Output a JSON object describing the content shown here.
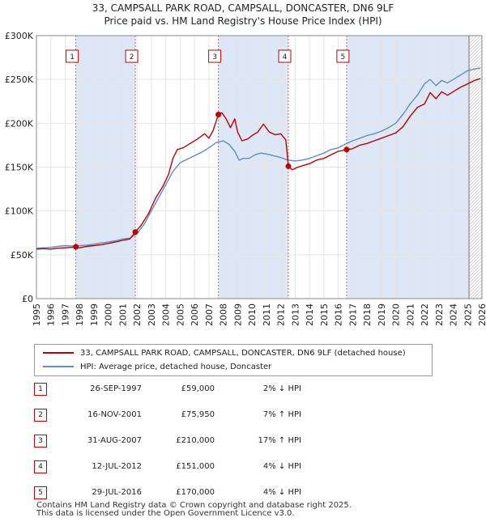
{
  "title_line1": "33, CAMPSALL PARK ROAD, CAMPSALL, DONCASTER, DN6 9LF",
  "title_line2": "Price paid vs. HM Land Registry's House Price Index (HPI)",
  "colors": {
    "property": "#c00000",
    "hpi": "#5b8fc9",
    "shade": "#dde7f5",
    "marker_line": "#e06060"
  },
  "chart_data": {
    "type": "line",
    "ylim": [
      0,
      300000
    ],
    "xlim": [
      1995,
      2026
    ],
    "y_ticks": [
      0,
      50000,
      100000,
      150000,
      200000,
      250000,
      300000
    ],
    "y_tick_labels": [
      "£0",
      "£50K",
      "£100K",
      "£150K",
      "£200K",
      "£250K",
      "£300K"
    ],
    "x_ticks": [
      1995,
      1996,
      1997,
      1998,
      1999,
      2000,
      2001,
      2002,
      2003,
      2004,
      2005,
      2006,
      2007,
      2008,
      2009,
      2010,
      2011,
      2012,
      2013,
      2014,
      2015,
      2016,
      2017,
      2018,
      2019,
      2020,
      2021,
      2022,
      2023,
      2024,
      2025,
      2026
    ],
    "future_from": 2025.1,
    "shaded_spans": [
      [
        1997.74,
        2001.88
      ],
      [
        2007.66,
        2012.53
      ],
      [
        2016.58,
        2025.1
      ]
    ],
    "series": [
      {
        "name": "33, CAMPSALL PARK ROAD, CAMPSALL, DONCASTER, DN6 9LF (detached house)",
        "color": "#c00000",
        "points": [
          [
            1995.0,
            56500
          ],
          [
            1995.5,
            57000
          ],
          [
            1996.0,
            56500
          ],
          [
            1996.5,
            57500
          ],
          [
            1997.0,
            58000
          ],
          [
            1997.5,
            58500
          ],
          [
            1997.74,
            59000
          ],
          [
            1998.0,
            58000
          ],
          [
            1998.5,
            59500
          ],
          [
            1999.0,
            60500
          ],
          [
            1999.5,
            61500
          ],
          [
            2000.0,
            63000
          ],
          [
            2000.5,
            64500
          ],
          [
            2001.0,
            66500
          ],
          [
            2001.5,
            68000
          ],
          [
            2001.88,
            75950
          ],
          [
            2002.3,
            84000
          ],
          [
            2002.8,
            97000
          ],
          [
            2003.3,
            115000
          ],
          [
            2003.8,
            128000
          ],
          [
            2004.2,
            142000
          ],
          [
            2004.5,
            160000
          ],
          [
            2004.8,
            170000
          ],
          [
            2005.2,
            172000
          ],
          [
            2005.7,
            177000
          ],
          [
            2006.2,
            182000
          ],
          [
            2006.7,
            188000
          ],
          [
            2007.0,
            183000
          ],
          [
            2007.3,
            192000
          ],
          [
            2007.66,
            210000
          ],
          [
            2007.9,
            212000
          ],
          [
            2008.2,
            205000
          ],
          [
            2008.5,
            195000
          ],
          [
            2008.8,
            205000
          ],
          [
            2009.0,
            190000
          ],
          [
            2009.3,
            180000
          ],
          [
            2009.7,
            182000
          ],
          [
            2010.0,
            186000
          ],
          [
            2010.4,
            190000
          ],
          [
            2010.8,
            199000
          ],
          [
            2011.2,
            190000
          ],
          [
            2011.6,
            187000
          ],
          [
            2012.0,
            188000
          ],
          [
            2012.35,
            181000
          ],
          [
            2012.45,
            165000
          ],
          [
            2012.53,
            151000
          ],
          [
            2012.8,
            147000
          ],
          [
            2013.2,
            150000
          ],
          [
            2013.6,
            152000
          ],
          [
            2014.0,
            154000
          ],
          [
            2014.5,
            158000
          ],
          [
            2015.0,
            160000
          ],
          [
            2015.5,
            164000
          ],
          [
            2016.0,
            168000
          ],
          [
            2016.58,
            170000
          ],
          [
            2017.0,
            171000
          ],
          [
            2017.5,
            175000
          ],
          [
            2018.0,
            177000
          ],
          [
            2018.5,
            180000
          ],
          [
            2019.0,
            183000
          ],
          [
            2019.5,
            186000
          ],
          [
            2020.0,
            189000
          ],
          [
            2020.5,
            196000
          ],
          [
            2021.0,
            208000
          ],
          [
            2021.5,
            218000
          ],
          [
            2022.0,
            222000
          ],
          [
            2022.4,
            235000
          ],
          [
            2022.8,
            228000
          ],
          [
            2023.2,
            236000
          ],
          [
            2023.6,
            232000
          ],
          [
            2024.0,
            236000
          ],
          [
            2024.5,
            241000
          ],
          [
            2025.0,
            245000
          ],
          [
            2025.5,
            249000
          ],
          [
            2025.9,
            251000
          ]
        ]
      },
      {
        "name": "HPI: Average price, detached house, Doncaster",
        "color": "#5b8fc9",
        "points": [
          [
            1995.0,
            57500
          ],
          [
            1995.5,
            58000
          ],
          [
            1996.0,
            58500
          ],
          [
            1996.5,
            59500
          ],
          [
            1997.0,
            60500
          ],
          [
            1997.5,
            60000
          ],
          [
            1998.0,
            60500
          ],
          [
            1998.5,
            61000
          ],
          [
            1999.0,
            62000
          ],
          [
            1999.5,
            63500
          ],
          [
            2000.0,
            64500
          ],
          [
            2000.5,
            66000
          ],
          [
            2001.0,
            68000
          ],
          [
            2001.5,
            69000
          ],
          [
            2002.0,
            74000
          ],
          [
            2002.5,
            85000
          ],
          [
            2003.0,
            100000
          ],
          [
            2003.5,
            115000
          ],
          [
            2004.0,
            130000
          ],
          [
            2004.5,
            145000
          ],
          [
            2005.0,
            155000
          ],
          [
            2005.5,
            159000
          ],
          [
            2006.0,
            163000
          ],
          [
            2006.5,
            167000
          ],
          [
            2007.0,
            172000
          ],
          [
            2007.5,
            178000
          ],
          [
            2008.0,
            180000
          ],
          [
            2008.4,
            176000
          ],
          [
            2008.8,
            168000
          ],
          [
            2009.1,
            158000
          ],
          [
            2009.4,
            160000
          ],
          [
            2009.8,
            160000
          ],
          [
            2010.2,
            164000
          ],
          [
            2010.6,
            166000
          ],
          [
            2011.0,
            165000
          ],
          [
            2011.5,
            163000
          ],
          [
            2012.0,
            161000
          ],
          [
            2012.5,
            158000
          ],
          [
            2013.0,
            157000
          ],
          [
            2013.5,
            158000
          ],
          [
            2014.0,
            160000
          ],
          [
            2014.5,
            163000
          ],
          [
            2015.0,
            166000
          ],
          [
            2015.5,
            170000
          ],
          [
            2016.0,
            172000
          ],
          [
            2016.58,
            177000
          ],
          [
            2017.0,
            180000
          ],
          [
            2017.5,
            183000
          ],
          [
            2018.0,
            186000
          ],
          [
            2018.5,
            188000
          ],
          [
            2019.0,
            191000
          ],
          [
            2019.5,
            195000
          ],
          [
            2020.0,
            200000
          ],
          [
            2020.5,
            210000
          ],
          [
            2021.0,
            222000
          ],
          [
            2021.5,
            232000
          ],
          [
            2022.0,
            245000
          ],
          [
            2022.4,
            250000
          ],
          [
            2022.8,
            243000
          ],
          [
            2023.2,
            249000
          ],
          [
            2023.6,
            246000
          ],
          [
            2024.0,
            250000
          ],
          [
            2024.5,
            255000
          ],
          [
            2025.0,
            260000
          ],
          [
            2025.5,
            262000
          ],
          [
            2025.9,
            263000
          ]
        ]
      }
    ],
    "sale_markers": [
      {
        "label": "1",
        "x": 1997.74,
        "value": 59000
      },
      {
        "label": "2",
        "x": 2001.88,
        "value": 75950
      },
      {
        "label": "3",
        "x": 2007.66,
        "value": 210000
      },
      {
        "label": "4",
        "x": 2012.53,
        "value": 151000
      },
      {
        "label": "5",
        "x": 2016.58,
        "value": 170000
      }
    ]
  },
  "legend": {
    "property_label": "33, CAMPSALL PARK ROAD, CAMPSALL, DONCASTER, DN6 9LF (detached house)",
    "hpi_label": "HPI: Average price, detached house, Doncaster"
  },
  "sales": [
    {
      "num": "1",
      "date": "26-SEP-1997",
      "price": "£59,000",
      "hpi": "2% ↓ HPI"
    },
    {
      "num": "2",
      "date": "16-NOV-2001",
      "price": "£75,950",
      "hpi": "7% ↑ HPI"
    },
    {
      "num": "3",
      "date": "31-AUG-2007",
      "price": "£210,000",
      "hpi": "17% ↑ HPI"
    },
    {
      "num": "4",
      "date": "12-JUL-2012",
      "price": "£151,000",
      "hpi": "4% ↓ HPI"
    },
    {
      "num": "5",
      "date": "29-JUL-2016",
      "price": "£170,000",
      "hpi": "4% ↓ HPI"
    }
  ],
  "footer_line1": "Contains HM Land Registry data © Crown copyright and database right 2025.",
  "footer_line2": "This data is licensed under the Open Government Licence v3.0."
}
